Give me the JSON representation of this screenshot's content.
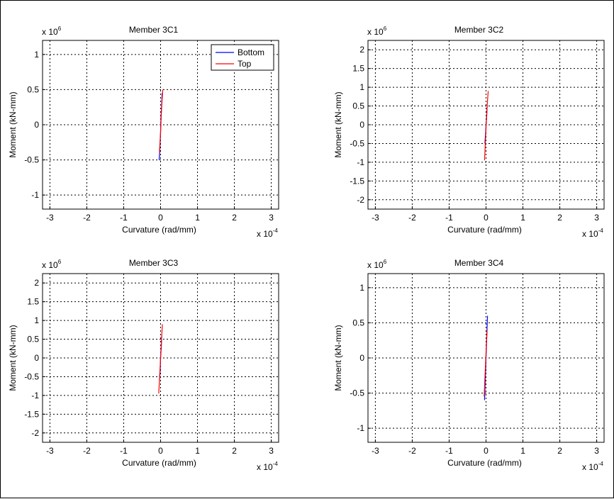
{
  "chart_data": [
    {
      "type": "line",
      "title": "Member 3C1",
      "xlabel": "Curvature (rad/mm)",
      "ylabel": "Moment (kN-mm)",
      "x_multiplier": {
        "base": "x 10",
        "exponent": "-4"
      },
      "y_multiplier": {
        "base": "x 10",
        "exponent": "6"
      },
      "xlim": [
        -3.2,
        3.2
      ],
      "ylim": [
        -1.2,
        1.2
      ],
      "xticks": [
        -3,
        -2,
        -1,
        0,
        1,
        2,
        3
      ],
      "xtick_labels": [
        "-3",
        "-2",
        "-1",
        "0",
        "1",
        "2",
        "3"
      ],
      "yticks": [
        -1,
        -0.5,
        0,
        0.5,
        1
      ],
      "ytick_labels": [
        "-1",
        "-0.5",
        "0",
        "0.5",
        "1"
      ],
      "grid": true,
      "legend": {
        "position": "top-right",
        "show": true
      },
      "series": [
        {
          "name": "Bottom",
          "color": "#0000ff",
          "x": [
            -0.04,
            -0.02,
            0.0,
            0.01,
            0.03,
            0.04
          ],
          "y": [
            -0.5,
            -0.35,
            -0.1,
            0.1,
            0.3,
            0.45
          ]
        },
        {
          "name": "Top",
          "color": "#ff0000",
          "x": [
            -0.03,
            0.0,
            0.02,
            0.04,
            0.06
          ],
          "y": [
            -0.4,
            -0.1,
            0.15,
            0.35,
            0.5
          ]
        }
      ]
    },
    {
      "type": "line",
      "title": "Member 3C2",
      "xlabel": "Curvature (rad/mm)",
      "ylabel": "Moment (kN-mm)",
      "x_multiplier": {
        "base": "x 10",
        "exponent": "-4"
      },
      "y_multiplier": {
        "base": "x 10",
        "exponent": "6"
      },
      "xlim": [
        -3.2,
        3.2
      ],
      "ylim": [
        -2.25,
        2.25
      ],
      "xticks": [
        -3,
        -2,
        -1,
        0,
        1,
        2,
        3
      ],
      "xtick_labels": [
        "-3",
        "-2",
        "-1",
        "0",
        "1",
        "2",
        "3"
      ],
      "yticks": [
        -2,
        -1.5,
        -1,
        -0.5,
        0,
        0.5,
        1,
        1.5,
        2
      ],
      "ytick_labels": [
        "-2",
        "-1.5",
        "-1",
        "-0.5",
        "0",
        "0.5",
        "1",
        "1.5",
        "2"
      ],
      "grid": true,
      "legend": {
        "show": false
      },
      "series": [
        {
          "name": "Bottom",
          "color": "#0000ff",
          "x": [
            -0.03,
            -0.01,
            0.0,
            0.02,
            0.03
          ],
          "y": [
            -0.5,
            -0.2,
            0.0,
            0.25,
            0.5
          ]
        },
        {
          "name": "Top",
          "color": "#ff0000",
          "x": [
            -0.04,
            -0.02,
            0.0,
            0.02,
            0.04,
            0.06
          ],
          "y": [
            -0.95,
            -0.5,
            -0.1,
            0.3,
            0.65,
            0.9
          ]
        }
      ]
    },
    {
      "type": "line",
      "title": "Member 3C3",
      "xlabel": "Curvature (rad/mm)",
      "ylabel": "Moment (kN-mm)",
      "x_multiplier": {
        "base": "x 10",
        "exponent": "-4"
      },
      "y_multiplier": {
        "base": "x 10",
        "exponent": "6"
      },
      "xlim": [
        -3.2,
        3.2
      ],
      "ylim": [
        -2.25,
        2.25
      ],
      "xticks": [
        -3,
        -2,
        -1,
        0,
        1,
        2,
        3
      ],
      "xtick_labels": [
        "-3",
        "-2",
        "-1",
        "0",
        "1",
        "2",
        "3"
      ],
      "yticks": [
        -2,
        -1.5,
        -1,
        -0.5,
        0,
        0.5,
        1,
        1.5,
        2
      ],
      "ytick_labels": [
        "-2",
        "-1.5",
        "-1",
        "-0.5",
        "0",
        "0.5",
        "1",
        "1.5",
        "2"
      ],
      "grid": true,
      "legend": {
        "show": false
      },
      "series": [
        {
          "name": "Bottom",
          "color": "#0000ff",
          "x": [
            -0.03,
            -0.01,
            0.0,
            0.02,
            0.03
          ],
          "y": [
            -0.6,
            -0.3,
            0.0,
            0.3,
            0.6
          ]
        },
        {
          "name": "Top",
          "color": "#ff0000",
          "x": [
            -0.05,
            -0.03,
            -0.01,
            0.01,
            0.03,
            0.05
          ],
          "y": [
            -0.95,
            -0.6,
            -0.2,
            0.2,
            0.6,
            0.9
          ]
        }
      ]
    },
    {
      "type": "line",
      "title": "Member 3C4",
      "xlabel": "Curvature (rad/mm)",
      "ylabel": "Moment (kN-mm)",
      "x_multiplier": {
        "base": "x 10",
        "exponent": "-4"
      },
      "y_multiplier": {
        "base": "x 10",
        "exponent": "6"
      },
      "xlim": [
        -3.2,
        3.2
      ],
      "ylim": [
        -1.2,
        1.2
      ],
      "xticks": [
        -3,
        -2,
        -1,
        0,
        1,
        2,
        3
      ],
      "xtick_labels": [
        "-3",
        "-2",
        "-1",
        "0",
        "1",
        "2",
        "3"
      ],
      "yticks": [
        -1,
        -0.5,
        0,
        0.5,
        1
      ],
      "ytick_labels": [
        "-1",
        "-0.5",
        "0",
        "0.5",
        "1"
      ],
      "grid": true,
      "legend": {
        "show": false
      },
      "series": [
        {
          "name": "Bottom",
          "color": "#0000ff",
          "x": [
            -0.04,
            -0.02,
            0.0,
            0.02,
            0.04
          ],
          "y": [
            -0.6,
            -0.3,
            0.0,
            0.3,
            0.6
          ]
        },
        {
          "name": "Top",
          "color": "#ff0000",
          "x": [
            -0.05,
            -0.03,
            -0.01,
            0.01,
            0.03
          ],
          "y": [
            -0.55,
            -0.3,
            -0.05,
            0.2,
            0.4
          ]
        }
      ]
    }
  ]
}
